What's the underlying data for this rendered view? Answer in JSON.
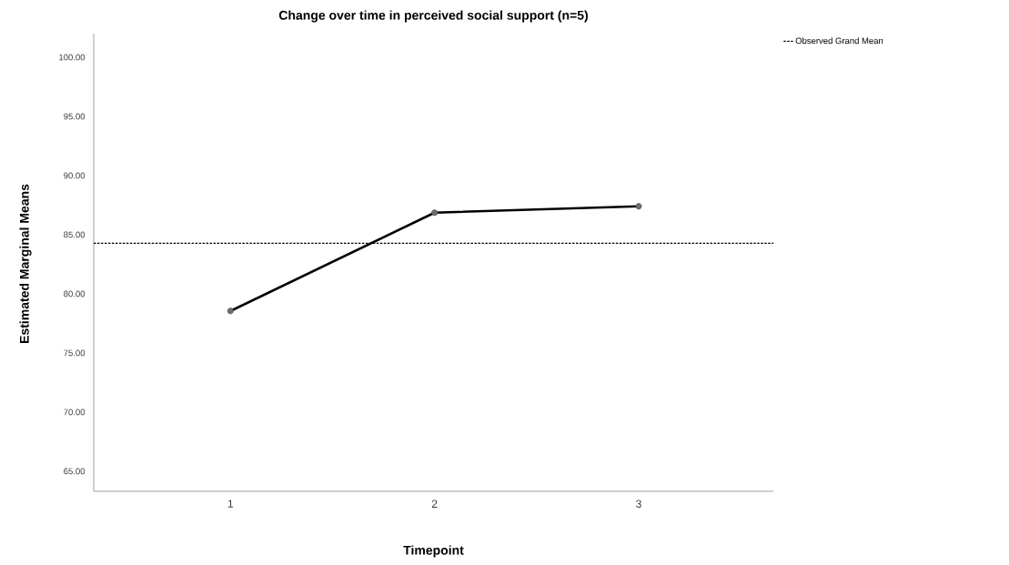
{
  "chart_data": {
    "type": "line",
    "title": "Change over time in perceived social support (n=5)",
    "xlabel": "Timepoint",
    "ylabel": "Estimated Marginal Means",
    "categories": [
      "1",
      "2",
      "3"
    ],
    "values": [
      78.55,
      86.86,
      87.4
    ],
    "color": "#000000",
    "marker": "circle",
    "legend": "top right",
    "ylim": [
      63.3,
      102
    ],
    "yticks": [
      {
        "value": 65,
        "label": "65.00"
      },
      {
        "value": 70,
        "label": "70.00"
      },
      {
        "value": 75,
        "label": "75.00"
      },
      {
        "value": 80,
        "label": "80.00"
      },
      {
        "value": 85,
        "label": "85.00"
      },
      {
        "value": 90,
        "label": "90.00"
      },
      {
        "value": 95,
        "label": "95.00"
      },
      {
        "value": 100,
        "label": "100.00"
      }
    ],
    "ref_lines": [
      {
        "axis": "y",
        "value": 84.27,
        "label": "Observed Grand Mean",
        "line_style": "dotted",
        "color": "#000000"
      }
    ]
  }
}
